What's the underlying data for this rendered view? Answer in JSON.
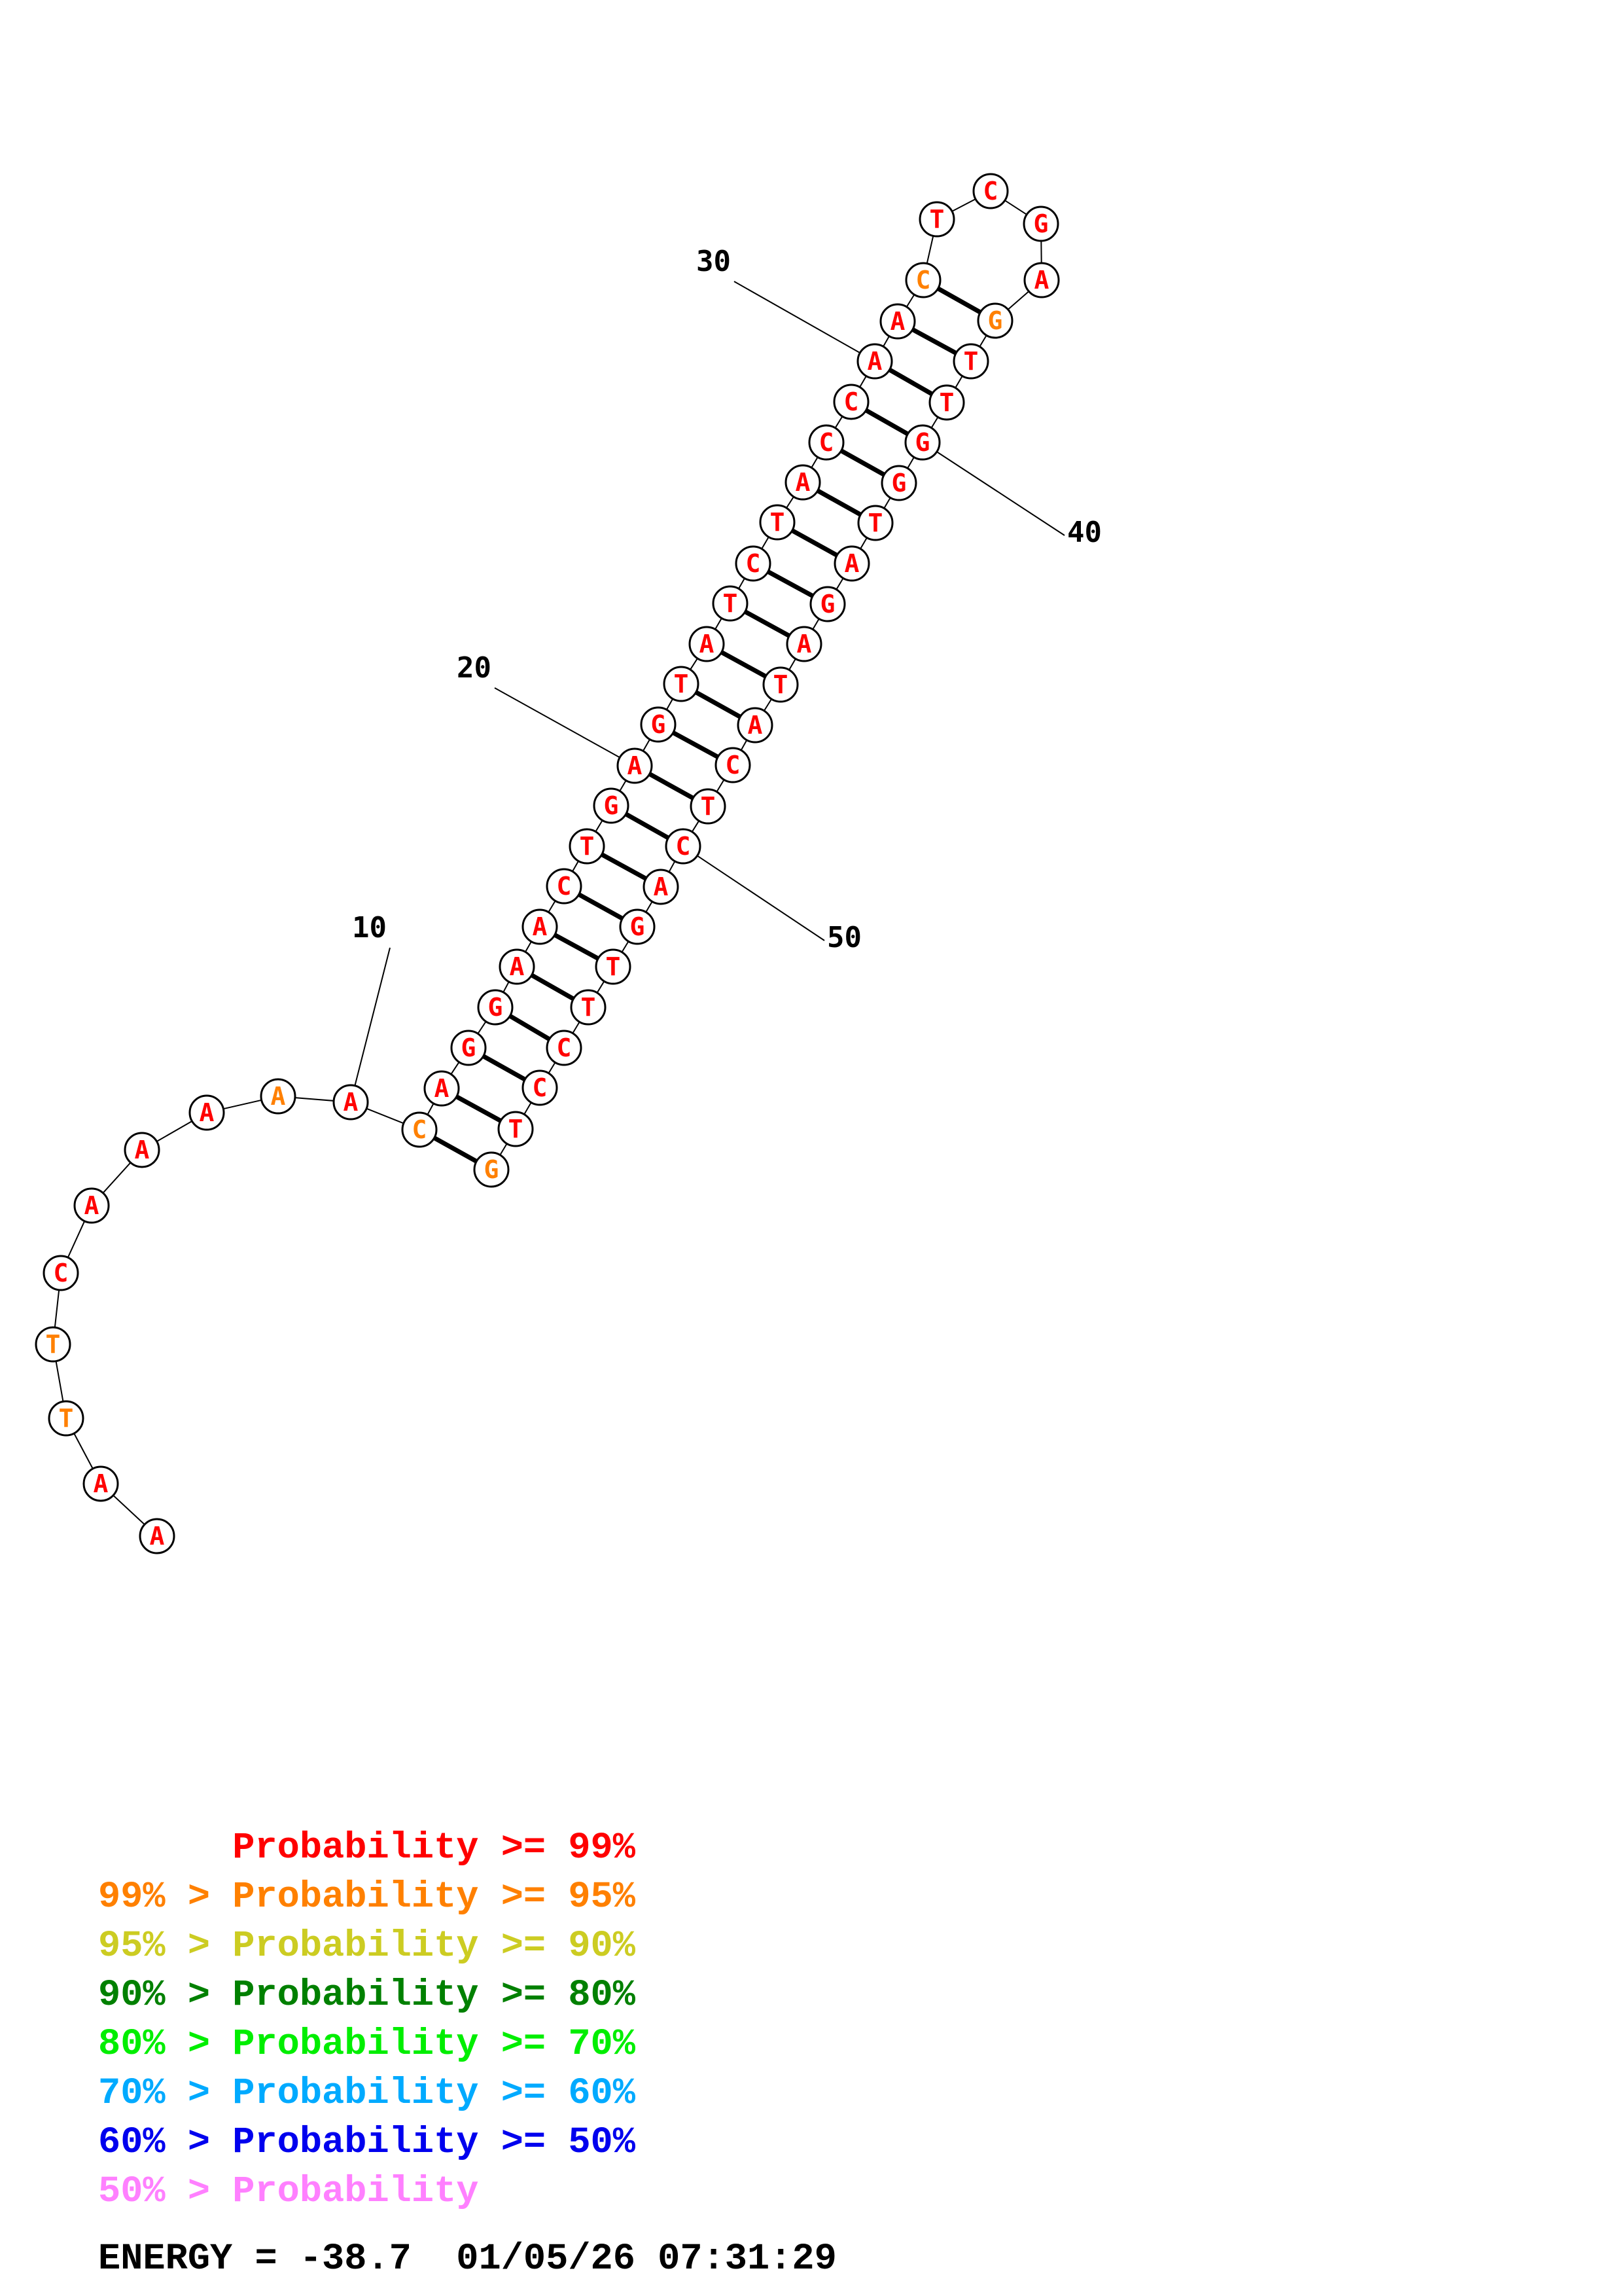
{
  "colors": {
    "p99": "#ff0000",
    "p95": "#ff8000",
    "p90": "#cccc22",
    "p80": "#008000",
    "p70": "#00ee00",
    "p60": "#00aaff",
    "p50": "#0000ee",
    "plow": "#ff80ff"
  },
  "sequence": [
    {
      "n": 1,
      "base": "A",
      "prob": "p99"
    },
    {
      "n": 2,
      "base": "A",
      "prob": "p99"
    },
    {
      "n": 3,
      "base": "T",
      "prob": "p95"
    },
    {
      "n": 4,
      "base": "T",
      "prob": "p95"
    },
    {
      "n": 5,
      "base": "C",
      "prob": "p99"
    },
    {
      "n": 6,
      "base": "A",
      "prob": "p99"
    },
    {
      "n": 7,
      "base": "A",
      "prob": "p99"
    },
    {
      "n": 8,
      "base": "A",
      "prob": "p99"
    },
    {
      "n": 9,
      "base": "A",
      "prob": "p95"
    },
    {
      "n": 10,
      "base": "A",
      "prob": "p99"
    },
    {
      "n": 11,
      "base": "C",
      "prob": "p95"
    },
    {
      "n": 12,
      "base": "A",
      "prob": "p99"
    },
    {
      "n": 13,
      "base": "G",
      "prob": "p99"
    },
    {
      "n": 14,
      "base": "G",
      "prob": "p99"
    },
    {
      "n": 15,
      "base": "A",
      "prob": "p99"
    },
    {
      "n": 16,
      "base": "A",
      "prob": "p99"
    },
    {
      "n": 17,
      "base": "C",
      "prob": "p99"
    },
    {
      "n": 18,
      "base": "T",
      "prob": "p99"
    },
    {
      "n": 19,
      "base": "G",
      "prob": "p99"
    },
    {
      "n": 20,
      "base": "A",
      "prob": "p99"
    },
    {
      "n": 21,
      "base": "G",
      "prob": "p99"
    },
    {
      "n": 22,
      "base": "T",
      "prob": "p99"
    },
    {
      "n": 23,
      "base": "A",
      "prob": "p99"
    },
    {
      "n": 24,
      "base": "T",
      "prob": "p99"
    },
    {
      "n": 25,
      "base": "C",
      "prob": "p99"
    },
    {
      "n": 26,
      "base": "T",
      "prob": "p99"
    },
    {
      "n": 27,
      "base": "A",
      "prob": "p99"
    },
    {
      "n": 28,
      "base": "C",
      "prob": "p99"
    },
    {
      "n": 29,
      "base": "C",
      "prob": "p99"
    },
    {
      "n": 30,
      "base": "A",
      "prob": "p99"
    },
    {
      "n": 31,
      "base": "A",
      "prob": "p99"
    },
    {
      "n": 32,
      "base": "C",
      "prob": "p95"
    },
    {
      "n": 33,
      "base": "T",
      "prob": "p99"
    },
    {
      "n": 34,
      "base": "C",
      "prob": "p99"
    },
    {
      "n": 35,
      "base": "G",
      "prob": "p99"
    },
    {
      "n": 36,
      "base": "A",
      "prob": "p99"
    },
    {
      "n": 37,
      "base": "G",
      "prob": "p95"
    },
    {
      "n": 38,
      "base": "T",
      "prob": "p99"
    },
    {
      "n": 39,
      "base": "T",
      "prob": "p99"
    },
    {
      "n": 40,
      "base": "G",
      "prob": "p99"
    },
    {
      "n": 41,
      "base": "G",
      "prob": "p99"
    },
    {
      "n": 42,
      "base": "T",
      "prob": "p99"
    },
    {
      "n": 43,
      "base": "A",
      "prob": "p99"
    },
    {
      "n": 44,
      "base": "G",
      "prob": "p99"
    },
    {
      "n": 45,
      "base": "A",
      "prob": "p99"
    },
    {
      "n": 46,
      "base": "T",
      "prob": "p99"
    },
    {
      "n": 47,
      "base": "A",
      "prob": "p99"
    },
    {
      "n": 48,
      "base": "C",
      "prob": "p99"
    },
    {
      "n": 49,
      "base": "T",
      "prob": "p99"
    },
    {
      "n": 50,
      "base": "C",
      "prob": "p99"
    },
    {
      "n": 51,
      "base": "A",
      "prob": "p99"
    },
    {
      "n": 52,
      "base": "G",
      "prob": "p99"
    },
    {
      "n": 53,
      "base": "T",
      "prob": "p99"
    },
    {
      "n": 54,
      "base": "T",
      "prob": "p99"
    },
    {
      "n": 55,
      "base": "C",
      "prob": "p99"
    },
    {
      "n": 56,
      "base": "C",
      "prob": "p99"
    },
    {
      "n": 57,
      "base": "T",
      "prob": "p99"
    },
    {
      "n": 58,
      "base": "G",
      "prob": "p95"
    }
  ],
  "pairs": [
    [
      11,
      58
    ],
    [
      12,
      57
    ],
    [
      13,
      56
    ],
    [
      14,
      55
    ],
    [
      15,
      54
    ],
    [
      16,
      53
    ],
    [
      17,
      52
    ],
    [
      18,
      51
    ],
    [
      19,
      50
    ],
    [
      20,
      49
    ],
    [
      21,
      48
    ],
    [
      22,
      47
    ],
    [
      23,
      46
    ],
    [
      24,
      45
    ],
    [
      25,
      44
    ],
    [
      26,
      43
    ],
    [
      27,
      42
    ],
    [
      28,
      41
    ],
    [
      29,
      40
    ],
    [
      30,
      39
    ],
    [
      31,
      38
    ],
    [
      32,
      37
    ]
  ],
  "numbers": [
    {
      "n": 10,
      "label": "10"
    },
    {
      "n": 20,
      "label": "20"
    },
    {
      "n": 30,
      "label": "30"
    },
    {
      "n": 40,
      "label": "40"
    },
    {
      "n": 50,
      "label": "50"
    }
  ],
  "legend": [
    {
      "text": "      Probability >= 99%",
      "color": "p99"
    },
    {
      "text": "99% > Probability >= 95%",
      "color": "p95"
    },
    {
      "text": "95% > Probability >= 90%",
      "color": "p90"
    },
    {
      "text": "90% > Probability >= 80%",
      "color": "p80"
    },
    {
      "text": "80% > Probability >= 70%",
      "color": "p70"
    },
    {
      "text": "70% > Probability >= 60%",
      "color": "p60"
    },
    {
      "text": "60% > Probability >= 50%",
      "color": "p50"
    },
    {
      "text": "50% > Probability",
      "color": "plow"
    }
  ],
  "energy": "ENERGY = -38.7  01/05/26 07:31:29"
}
